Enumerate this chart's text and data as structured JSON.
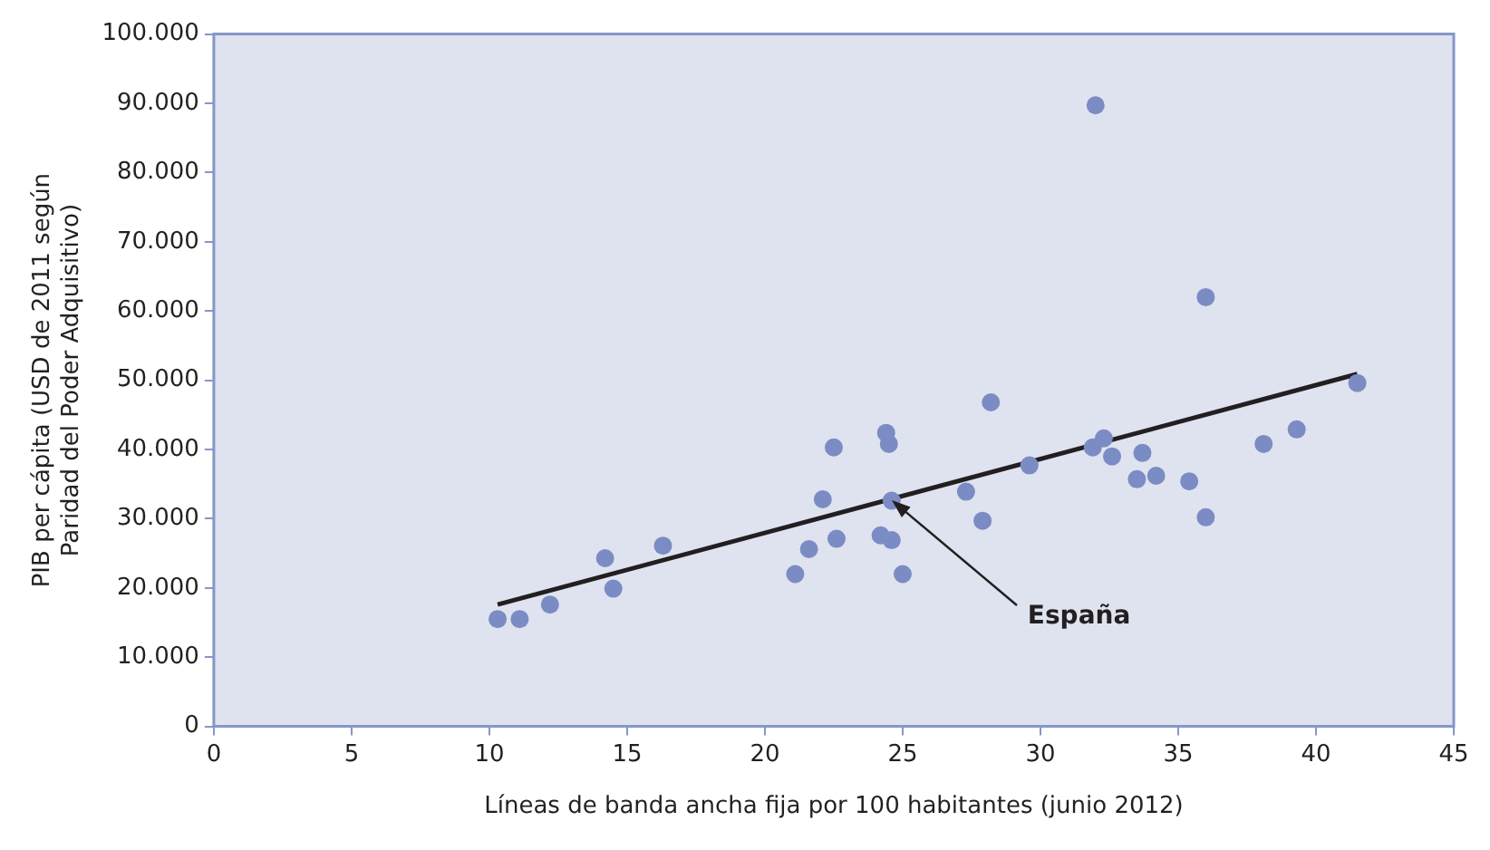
{
  "chart_data": {
    "type": "scatter",
    "xlabel": "Líneas de banda ancha fija por 100 habitantes (junio 2012)",
    "ylabel": "PIB per cápita (USD de 2011 según Paridad del Poder Adquisitivo)",
    "xlim": [
      0,
      45
    ],
    "xticks": [
      0,
      5,
      10,
      15,
      20,
      25,
      30,
      35,
      40,
      45
    ],
    "ylim": [
      0,
      100000
    ],
    "yticks": [
      0,
      {
        "value": 10000,
        "label": "10.000"
      },
      {
        "value": 20000,
        "label": "20.000"
      },
      {
        "value": 30000,
        "label": "30.000"
      },
      {
        "value": 40000,
        "label": "40.000"
      },
      {
        "value": 50000,
        "label": "50.000"
      },
      {
        "value": 60000,
        "label": "60.000"
      },
      {
        "value": 70000,
        "label": "70.000"
      },
      {
        "value": 80000,
        "label": "80.000"
      },
      {
        "value": 90000,
        "label": "90.000"
      },
      {
        "value": 100000,
        "label": "100.000"
      }
    ],
    "grid": false,
    "legend": false,
    "marker": "circle",
    "annotations": [
      {
        "text": "España",
        "x": 24.6,
        "y": 32600
      }
    ],
    "series": [
      {
        "color": "#7b8cc4",
        "x": [
          10.3,
          11.1,
          12.2,
          14.2,
          14.5,
          16.3,
          21.1,
          21.6,
          22.1,
          22.5,
          22.6,
          24.2,
          24.4,
          24.5,
          24.6,
          24.6,
          25.0,
          27.3,
          27.9,
          28.2,
          29.6,
          31.9,
          32.3,
          32.0,
          32.6,
          33.5,
          33.7,
          34.2,
          35.4,
          36.0,
          36.0,
          38.1,
          39.3,
          41.5
        ],
        "values": [
          15500,
          15500,
          17600,
          24300,
          19900,
          26100,
          22000,
          25600,
          32800,
          40300,
          27100,
          27600,
          42400,
          40800,
          32600,
          26900,
          22000,
          33900,
          29700,
          46800,
          37700,
          40300,
          41600,
          89700,
          39000,
          35700,
          39500,
          36200,
          35400,
          62000,
          30200,
          40800,
          42900,
          49600
        ]
      },
      {
        "type": "line",
        "color": "#231f20",
        "x": [
          10.3,
          41.5
        ],
        "values": [
          17600,
          50900
        ],
        "marker": "none"
      }
    ]
  }
}
